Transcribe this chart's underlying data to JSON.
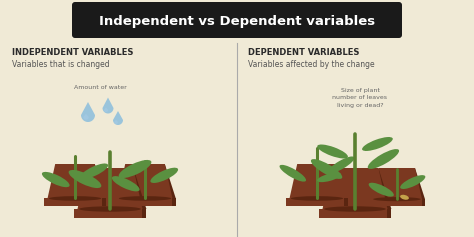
{
  "bg_color": "#f0ead6",
  "header_bg": "#1a1a1a",
  "header_text": "Independent vs Dependent variables",
  "header_text_color": "#ffffff",
  "left_title": "INDEPENDENT VARIABLES",
  "left_subtitle": "Variables that is changed",
  "left_annotation": "Amount of water",
  "right_title": "DEPENDENT VARIABLES",
  "right_subtitle": "Variables affected by the change",
  "right_annotation": "Size of plant\nnumber of leaves\nliving or dead?",
  "divider_color": "#aaaaaa",
  "title_color": "#2a2a2a",
  "subtitle_color": "#555555",
  "annotation_color": "#666666",
  "pot_color": "#7b3820",
  "pot_shadow": "#5a2510",
  "leaf_color": "#5a9040",
  "leaf_dark": "#3d7030",
  "stem_color": "#5a8030",
  "water_color": "#8bbedd",
  "water_light": "#a8cce8"
}
